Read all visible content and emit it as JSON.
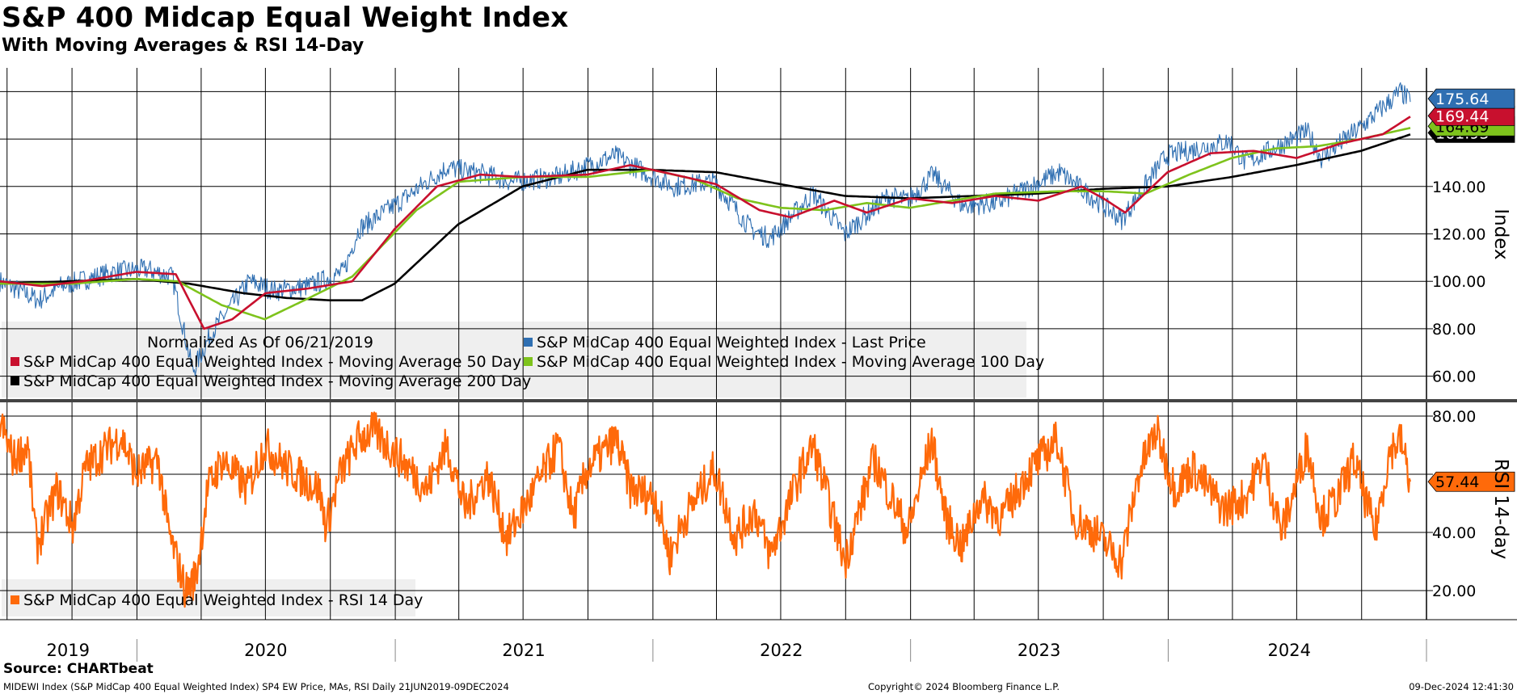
{
  "header": {
    "title": "S&P 400 Midcap Equal Weight Index",
    "subtitle": "With Moving Averages & RSI 14-Day"
  },
  "footer": {
    "source": "Source: CHARTbeat",
    "description": "MIDEWI Index (S&P MidCap 400 Equal Weighted Index) SP4 EW Price, MAs, RSI  Daily 21JUN2019-09DEC2024",
    "copyright": "Copyright© 2024 Bloomberg Finance L.P.",
    "timestamp": "09-Dec-2024 12:41:30"
  },
  "chart_data": [
    {
      "type": "line",
      "panel": "upper",
      "title": "S&P 400 Midcap Equal Weight Index",
      "ylabel": "Index",
      "ylim": [
        50,
        190
      ],
      "yticks": [
        60,
        80,
        100,
        120,
        140,
        160,
        180
      ],
      "ytick_labels": [
        "60.00",
        "80.00",
        "100.00",
        "120.00",
        "140.00",
        "",
        ""
      ],
      "x_range": [
        "2019-06-21",
        "2024-12-09"
      ],
      "x_labels": [
        "2019",
        "2020",
        "2021",
        "2022",
        "2023",
        "2024"
      ],
      "grid": true,
      "legend_note": "Normalized As Of 06/21/2019",
      "legend_position": "bottom-left",
      "series": [
        {
          "name": "S&P MidCap 400 Equal Weighted Index - Last Price",
          "color": "#2f6fb2",
          "last_value": "175.64",
          "x": [
            "2019-06-21",
            "2019-08-15",
            "2019-09-15",
            "2019-11-30",
            "2020-01-15",
            "2020-02-20",
            "2020-03-20",
            "2020-04-15",
            "2020-06-08",
            "2020-07-15",
            "2020-09-01",
            "2020-10-20",
            "2020-11-10",
            "2020-12-31",
            "2021-03-15",
            "2021-05-10",
            "2021-06-15",
            "2021-08-20",
            "2021-11-08",
            "2021-12-20",
            "2022-01-31",
            "2022-03-29",
            "2022-05-20",
            "2022-06-16",
            "2022-08-16",
            "2022-09-30",
            "2022-11-30",
            "2022-12-28",
            "2023-02-02",
            "2023-03-15",
            "2023-05-04",
            "2023-07-31",
            "2023-10-27",
            "2023-12-29",
            "2024-03-28",
            "2024-04-19",
            "2024-07-16",
            "2024-08-05",
            "2024-09-30",
            "2024-11-25",
            "2024-12-09"
          ],
          "values": [
            100,
            92,
            98,
            104,
            105,
            102,
            62,
            78,
            100,
            96,
            98,
            104,
            122,
            132,
            148,
            145,
            142,
            144,
            153,
            146,
            140,
            142,
            122,
            118,
            137,
            120,
            136,
            134,
            145,
            132,
            133,
            146,
            126,
            153,
            159,
            150,
            163,
            152,
            165,
            180,
            175.64
          ]
        },
        {
          "name": "S&P MidCap 400 Equal Weighted Index - Moving Average 50 Day",
          "color": "#c8102e",
          "last_value": "169.44",
          "x": [
            "2019-06-21",
            "2019-08-20",
            "2019-10-15",
            "2019-12-31",
            "2020-02-25",
            "2020-04-05",
            "2020-05-15",
            "2020-07-01",
            "2020-08-31",
            "2020-11-01",
            "2020-12-31",
            "2021-03-01",
            "2021-05-01",
            "2021-06-30",
            "2021-09-30",
            "2021-11-30",
            "2022-01-31",
            "2022-03-31",
            "2022-06-01",
            "2022-07-15",
            "2022-09-15",
            "2022-10-31",
            "2022-12-31",
            "2023-03-01",
            "2023-05-01",
            "2023-07-01",
            "2023-08-31",
            "2023-10-01",
            "2023-11-01",
            "2023-12-31",
            "2024-03-01",
            "2024-05-01",
            "2024-07-01",
            "2024-08-31",
            "2024-10-31",
            "2024-12-09"
          ],
          "values": [
            100,
            98,
            100,
            104,
            103,
            80,
            84,
            95,
            97,
            100,
            122,
            140,
            145,
            144,
            145,
            149,
            145,
            141,
            130,
            127,
            134,
            129,
            135,
            133,
            136,
            134,
            140,
            135,
            129,
            146,
            154,
            155,
            152,
            158,
            162,
            169.44
          ]
        },
        {
          "name": "S&P MidCap 400 Equal Weighted Index - Moving Average 100 Day",
          "color": "#7ec31c",
          "last_value": "164.69",
          "x": [
            "2019-06-21",
            "2019-10-01",
            "2019-12-31",
            "2020-02-28",
            "2020-04-30",
            "2020-06-30",
            "2020-09-01",
            "2020-11-01",
            "2021-01-31",
            "2021-04-01",
            "2021-06-30",
            "2021-09-30",
            "2021-12-31",
            "2022-03-01",
            "2022-05-01",
            "2022-07-01",
            "2022-09-01",
            "2022-10-31",
            "2022-12-31",
            "2023-03-01",
            "2023-05-01",
            "2023-07-31",
            "2023-09-30",
            "2023-11-30",
            "2024-01-31",
            "2024-03-31",
            "2024-05-31",
            "2024-07-31",
            "2024-09-30",
            "2024-12-09"
          ],
          "values": [
            99,
            99,
            101,
            100,
            90,
            84,
            93,
            102,
            130,
            142,
            144,
            144,
            147,
            143,
            135,
            131,
            130,
            133,
            131,
            134,
            137,
            138,
            138,
            137,
            145,
            152,
            156,
            157,
            160,
            164.69
          ]
        },
        {
          "name": "S&P MidCap 400 Equal Weighted Index - Moving Average 200 Day",
          "color": "#000000",
          "last_value": "161.93",
          "x": [
            "2019-06-21",
            "2019-12-31",
            "2020-03-15",
            "2020-05-31",
            "2020-07-31",
            "2020-09-30",
            "2020-11-15",
            "2020-12-31",
            "2021-03-31",
            "2021-06-30",
            "2021-09-30",
            "2021-12-31",
            "2022-03-31",
            "2022-06-30",
            "2022-09-30",
            "2022-12-31",
            "2023-03-31",
            "2023-06-30",
            "2023-09-30",
            "2023-12-31",
            "2024-03-31",
            "2024-06-30",
            "2024-09-30",
            "2024-12-09"
          ],
          "values": [
            99,
            101,
            99,
            95,
            93,
            92,
            92,
            99,
            124,
            140,
            147,
            147,
            146,
            141,
            136,
            135,
            136,
            137,
            139,
            140,
            144,
            149,
            155,
            161.93
          ]
        }
      ]
    },
    {
      "type": "line",
      "panel": "lower",
      "ylabel": "RSI 14-day",
      "ylim": [
        10,
        85
      ],
      "yticks": [
        20,
        40,
        60,
        80
      ],
      "ytick_labels": [
        "20.00",
        "40.00",
        "",
        "80.00"
      ],
      "x_range": [
        "2019-06-21",
        "2024-12-09"
      ],
      "grid": true,
      "legend_position": "bottom-left",
      "series": [
        {
          "name": "S&P MidCap 400 Equal Weighted Index - RSI 14 Day",
          "color": "#ff6a0a",
          "last_value": "57.44",
          "x": [
            "2019-06-21",
            "2019-07-10",
            "2019-07-30",
            "2019-08-12",
            "2019-09-10",
            "2019-10-02",
            "2019-10-20",
            "2019-11-15",
            "2019-12-10",
            "2019-12-31",
            "2020-01-31",
            "2020-02-15",
            "2020-03-10",
            "2020-03-25",
            "2020-04-10",
            "2020-05-01",
            "2020-06-05",
            "2020-06-30",
            "2020-08-01",
            "2020-09-15",
            "2020-09-25",
            "2020-10-15",
            "2020-11-10",
            "2020-12-01",
            "2021-01-10",
            "2021-02-15",
            "2021-03-15",
            "2021-04-10",
            "2021-05-12",
            "2021-06-08",
            "2021-07-18",
            "2021-08-20",
            "2021-09-10",
            "2021-09-30",
            "2021-11-10",
            "2021-11-30",
            "2022-01-05",
            "2022-01-25",
            "2022-02-15",
            "2022-03-29",
            "2022-04-28",
            "2022-05-25",
            "2022-06-16",
            "2022-07-28",
            "2022-08-16",
            "2022-09-10",
            "2022-09-30",
            "2022-11-10",
            "2022-12-28",
            "2023-01-31",
            "2023-02-20",
            "2023-03-15",
            "2023-04-10",
            "2023-05-10",
            "2023-06-15",
            "2023-07-28",
            "2023-08-20",
            "2023-09-20",
            "2023-10-27",
            "2023-11-20",
            "2023-12-15",
            "2024-01-10",
            "2024-02-05",
            "2024-03-20",
            "2024-04-19",
            "2024-05-15",
            "2024-06-10",
            "2024-07-16",
            "2024-08-05",
            "2024-08-28",
            "2024-09-20",
            "2024-10-20",
            "2024-11-10",
            "2024-11-25",
            "2024-12-09"
          ],
          "values": [
            78,
            65,
            70,
            35,
            55,
            42,
            62,
            68,
            73,
            60,
            65,
            40,
            20,
            25,
            55,
            65,
            55,
            70,
            62,
            55,
            42,
            60,
            72,
            75,
            65,
            55,
            70,
            48,
            60,
            38,
            55,
            70,
            45,
            62,
            72,
            55,
            52,
            32,
            45,
            62,
            38,
            48,
            32,
            60,
            70,
            48,
            30,
            65,
            40,
            72,
            45,
            35,
            52,
            45,
            60,
            72,
            45,
            40,
            30,
            60,
            75,
            55,
            62,
            48,
            52,
            65,
            40,
            70,
            45,
            52,
            65,
            40,
            68,
            72,
            57.44
          ]
        }
      ]
    }
  ]
}
